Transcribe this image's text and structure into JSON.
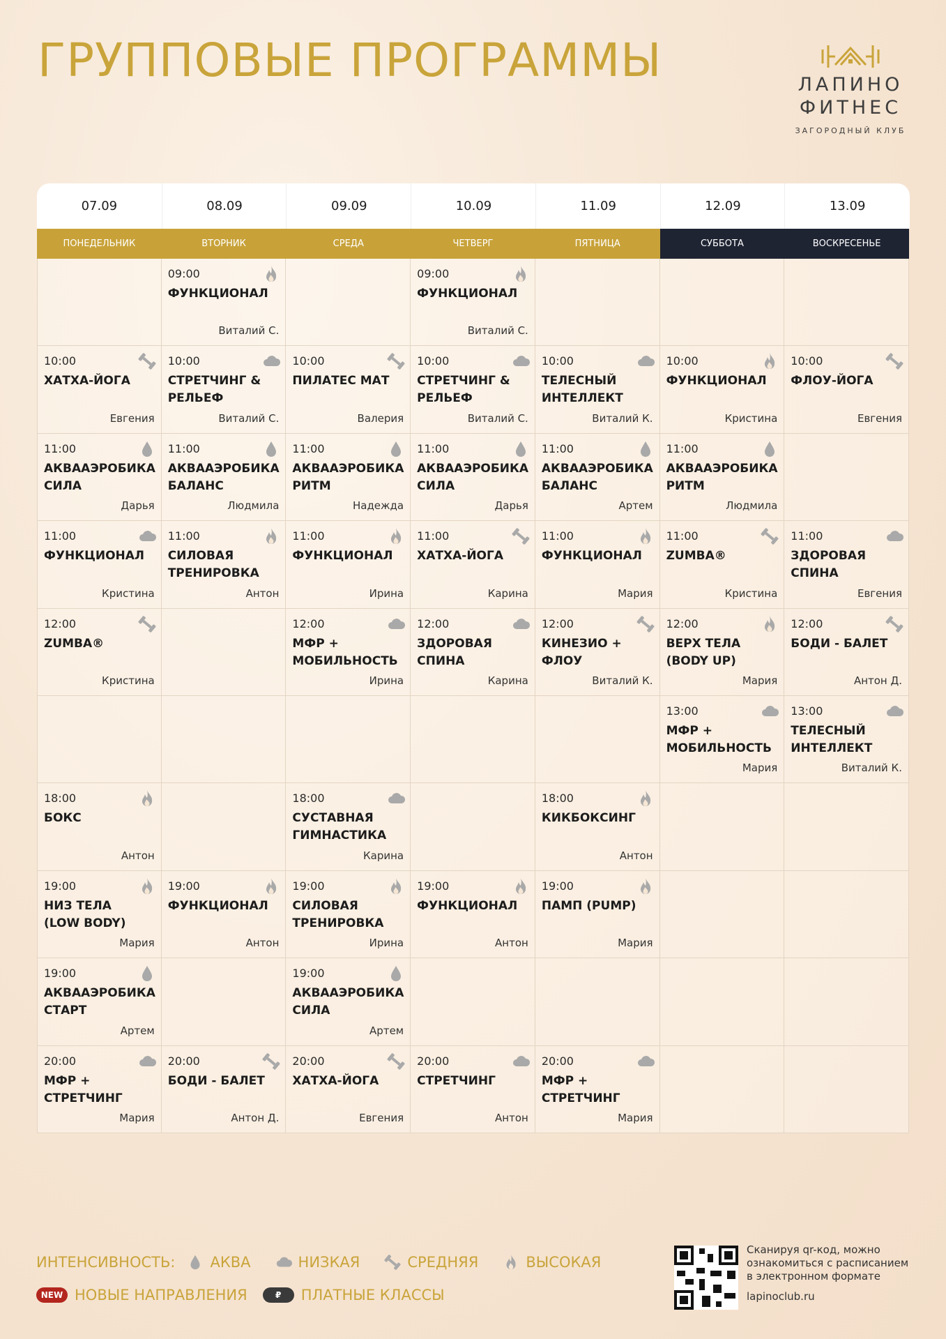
{
  "header": {
    "title": "ГРУППОВЫЕ ПРОГРАММЫ",
    "logo": {
      "line1": "ЛАПИНО",
      "line2": "ФИТНЕС",
      "tagline": "ЗАГОРОДНЫЙ КЛУБ"
    }
  },
  "table": {
    "days": [
      {
        "date": "07.09",
        "day": "ПОНЕДЕЛЬНИК",
        "weekend": false
      },
      {
        "date": "08.09",
        "day": "ВТОРНИК",
        "weekend": false
      },
      {
        "date": "09.09",
        "day": "СРЕДА",
        "weekend": false
      },
      {
        "date": "10.09",
        "day": "ЧЕТВЕРГ",
        "weekend": false
      },
      {
        "date": "11.09",
        "day": "ПЯТНИЦА",
        "weekend": false
      },
      {
        "date": "12.09",
        "day": "СУББОТА",
        "weekend": true
      },
      {
        "date": "13.09",
        "day": "ВОСКРЕСЕНЬЕ",
        "weekend": true
      }
    ],
    "rows": [
      [
        null,
        {
          "time": "09:00",
          "name": "ФУНКЦИОНАЛ",
          "trainer": "Виталий С.",
          "intensity": "high"
        },
        null,
        {
          "time": "09:00",
          "name": "ФУНКЦИОНАЛ",
          "trainer": "Виталий С.",
          "intensity": "high"
        },
        null,
        null,
        null
      ],
      [
        {
          "time": "10:00",
          "name": "ХАТХА-ЙОГА",
          "trainer": "Евгения",
          "intensity": "medium"
        },
        {
          "time": "10:00",
          "name": "СТРЕТЧИНГ &\nРЕЛЬЕФ",
          "trainer": "Виталий С.",
          "intensity": "low"
        },
        {
          "time": "10:00",
          "name": "ПИЛАТЕС МАТ",
          "trainer": "Валерия",
          "intensity": "medium"
        },
        {
          "time": "10:00",
          "name": "СТРЕТЧИНГ &\nРЕЛЬЕФ",
          "trainer": "Виталий С.",
          "intensity": "low"
        },
        {
          "time": "10:00",
          "name": "ТЕЛЕСНЫЙ\nИНТЕЛЛЕКТ",
          "trainer": "Виталий К.",
          "intensity": "low"
        },
        {
          "time": "10:00",
          "name": "ФУНКЦИОНАЛ",
          "trainer": "Кристина",
          "intensity": "high"
        },
        {
          "time": "10:00",
          "name": "ФЛОУ-ЙОГА",
          "trainer": "Евгения",
          "intensity": "medium"
        }
      ],
      [
        {
          "time": "11:00",
          "name": "АКВААЭРОБИКА\nСИЛА",
          "trainer": "Дарья",
          "intensity": "aqua"
        },
        {
          "time": "11:00",
          "name": "АКВААЭРОБИКА\nБАЛАНС",
          "trainer": "Людмила",
          "intensity": "aqua"
        },
        {
          "time": "11:00",
          "name": "АКВААЭРОБИКА\nРИТМ",
          "trainer": "Надежда",
          "intensity": "aqua"
        },
        {
          "time": "11:00",
          "name": "АКВААЭРОБИКА\nСИЛА",
          "trainer": "Дарья",
          "intensity": "aqua"
        },
        {
          "time": "11:00",
          "name": "АКВААЭРОБИКА\nБАЛАНС",
          "trainer": "Артем",
          "intensity": "aqua"
        },
        {
          "time": "11:00",
          "name": "АКВААЭРОБИКА\nРИТМ",
          "trainer": "Людмила",
          "intensity": "aqua"
        },
        null
      ],
      [
        {
          "time": "11:00",
          "name": "ФУНКЦИОНАЛ",
          "trainer": "Кристина",
          "intensity": "low"
        },
        {
          "time": "11:00",
          "name": "СИЛОВАЯ\nТРЕНИРОВКА",
          "trainer": "Антон",
          "intensity": "high"
        },
        {
          "time": "11:00",
          "name": "ФУНКЦИОНАЛ",
          "trainer": "Ирина",
          "intensity": "high"
        },
        {
          "time": "11:00",
          "name": "ХАТХА-ЙОГА",
          "trainer": "Карина",
          "intensity": "medium"
        },
        {
          "time": "11:00",
          "name": "ФУНКЦИОНАЛ",
          "trainer": "Мария",
          "intensity": "high"
        },
        {
          "time": "11:00",
          "name": "ZUMBA®",
          "trainer": "Кристина",
          "intensity": "medium"
        },
        {
          "time": "11:00",
          "name": "ЗДОРОВАЯ\nСПИНА",
          "trainer": "Евгения",
          "intensity": "low"
        }
      ],
      [
        {
          "time": "12:00",
          "name": "ZUMBA®",
          "trainer": "Кристина",
          "intensity": "medium"
        },
        null,
        {
          "time": "12:00",
          "name": "МФР +\nМОБИЛЬНОСТЬ",
          "trainer": "Ирина",
          "intensity": "low"
        },
        {
          "time": "12:00",
          "name": "ЗДОРОВАЯ\nСПИНА",
          "trainer": "Карина",
          "intensity": "low"
        },
        {
          "time": "12:00",
          "name": "КИНЕЗИО +\nФЛОУ",
          "trainer": "Виталий К.",
          "intensity": "medium"
        },
        {
          "time": "12:00",
          "name": "ВЕРХ ТЕЛА\n(BODY UP)",
          "trainer": "Мария",
          "intensity": "high"
        },
        {
          "time": "12:00",
          "name": "БОДИ - БАЛЕТ",
          "trainer": "Антон Д.",
          "intensity": "medium"
        }
      ],
      [
        null,
        null,
        null,
        null,
        null,
        {
          "time": "13:00",
          "name": "МФР +\nМОБИЛЬНОСТЬ",
          "trainer": "Мария",
          "intensity": "low"
        },
        {
          "time": "13:00",
          "name": "ТЕЛЕСНЫЙ\nИНТЕЛЛЕКТ",
          "trainer": "Виталий К.",
          "intensity": "low"
        }
      ],
      [
        {
          "time": "18:00",
          "name": "БОКС",
          "trainer": "Антон",
          "intensity": "high"
        },
        null,
        {
          "time": "18:00",
          "name": "СУСТАВНАЯ\nГИМНАСТИКА",
          "trainer": "Карина",
          "intensity": "low"
        },
        null,
        {
          "time": "18:00",
          "name": "КИКБОКСИНГ",
          "trainer": "Антон",
          "intensity": "high"
        },
        null,
        null
      ],
      [
        {
          "time": "19:00",
          "name": "НИЗ ТЕЛА\n(LOW BODY)",
          "trainer": "Мария",
          "intensity": "high"
        },
        {
          "time": "19:00",
          "name": "ФУНКЦИОНАЛ",
          "trainer": "Антон",
          "intensity": "high"
        },
        {
          "time": "19:00",
          "name": "СИЛОВАЯ\nТРЕНИРОВКА",
          "trainer": "Ирина",
          "intensity": "high"
        },
        {
          "time": "19:00",
          "name": "ФУНКЦИОНАЛ",
          "trainer": "Антон",
          "intensity": "high"
        },
        {
          "time": "19:00",
          "name": "ПАМП (PUMP)",
          "trainer": "Мария",
          "intensity": "high"
        },
        null,
        null
      ],
      [
        {
          "time": "19:00",
          "name": "АКВААЭРОБИКА\nСТАРТ",
          "trainer": "Артем",
          "intensity": "aqua"
        },
        null,
        {
          "time": "19:00",
          "name": "АКВААЭРОБИКА\nСИЛА",
          "trainer": "Артем",
          "intensity": "aqua"
        },
        null,
        null,
        null,
        null
      ],
      [
        {
          "time": "20:00",
          "name": "МФР +\nСТРЕТЧИНГ",
          "trainer": "Мария",
          "intensity": "low"
        },
        {
          "time": "20:00",
          "name": "БОДИ - БАЛЕТ",
          "trainer": "Антон Д.",
          "intensity": "medium"
        },
        {
          "time": "20:00",
          "name": "ХАТХА-ЙОГА",
          "trainer": "Евгения",
          "intensity": "medium"
        },
        {
          "time": "20:00",
          "name": "СТРЕТЧИНГ",
          "trainer": "Антон",
          "intensity": "low"
        },
        {
          "time": "20:00",
          "name": "МФР +\nСТРЕТЧИНГ",
          "trainer": "Мария",
          "intensity": "low"
        },
        null,
        null
      ]
    ]
  },
  "legend": {
    "intensity_label": "ИНТЕНСИВНОСТЬ:",
    "items": [
      {
        "key": "aqua",
        "label": "АКВА"
      },
      {
        "key": "low",
        "label": "НИЗКАЯ"
      },
      {
        "key": "medium",
        "label": "СРЕДНЯЯ"
      },
      {
        "key": "high",
        "label": "ВЫСОКАЯ"
      }
    ],
    "new_badge": "NEW",
    "new_label": "НОВЫЕ НАПРАВЛЕНИЯ",
    "paid_badge": "₽",
    "paid_label": "ПЛАТНЫЕ КЛАССЫ"
  },
  "footer": {
    "qr_text": "Сканируя qr-код, можно ознакомиться с расписанием в электронном формате",
    "site": "lapinoclub.ru"
  }
}
